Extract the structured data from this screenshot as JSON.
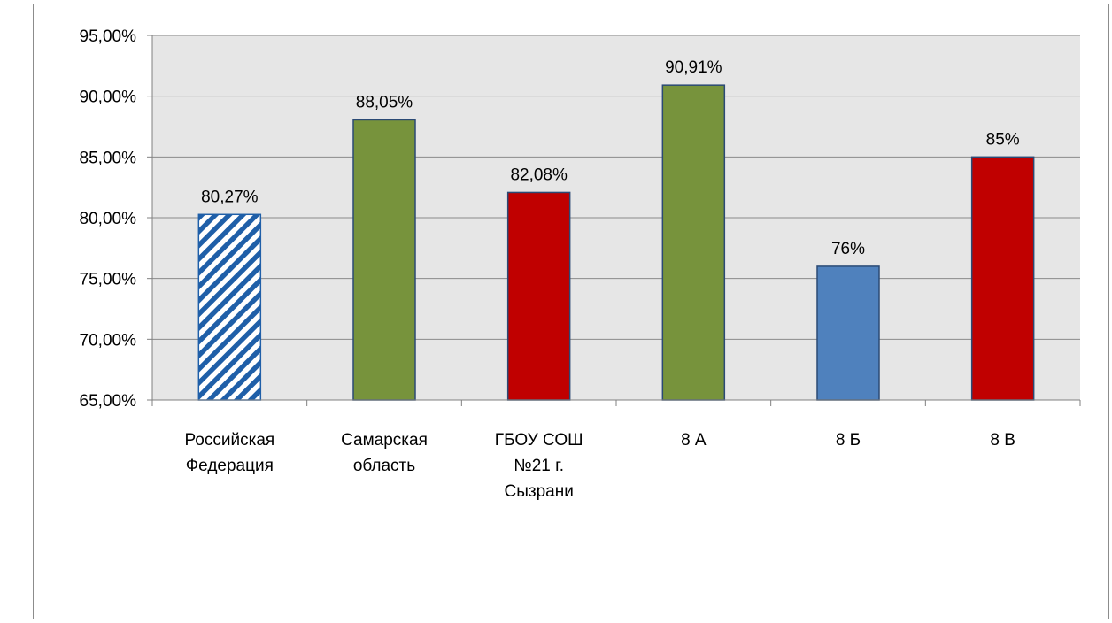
{
  "chart_data": {
    "type": "bar",
    "title": "",
    "xlabel": "",
    "ylabel": "",
    "categories": [
      [
        "Российская",
        "Федерация"
      ],
      [
        "Самарская",
        "область"
      ],
      [
        "ГБОУ СОШ",
        "№21 г.",
        "Сызрани"
      ],
      [
        "8 А"
      ],
      [
        "8 Б"
      ],
      [
        "8 В"
      ]
    ],
    "values": [
      80.27,
      88.05,
      82.08,
      90.91,
      76,
      85
    ],
    "data_labels": [
      "80,27%",
      "88,05%",
      "82,08%",
      "90,91%",
      "76%",
      "85%"
    ],
    "bar_styles": [
      "hatched-blue",
      "green",
      "red",
      "green",
      "blue",
      "red"
    ],
    "ylim": [
      65,
      95
    ],
    "yticks": [
      65,
      70,
      75,
      80,
      85,
      90,
      95
    ],
    "ytick_labels": [
      "65,00%",
      "70,00%",
      "75,00%",
      "80,00%",
      "85,00%",
      "90,00%",
      "95,00%"
    ],
    "grid": true,
    "legend": "none"
  },
  "colors": {
    "plot_bg": "#e6e6e6",
    "grid": "#8a8a8a",
    "green": "#77933c",
    "red": "#c00000",
    "blue": "#4f81bd",
    "hatch_blue": "#1f5fa8",
    "bar_border": "#2b4a75"
  }
}
